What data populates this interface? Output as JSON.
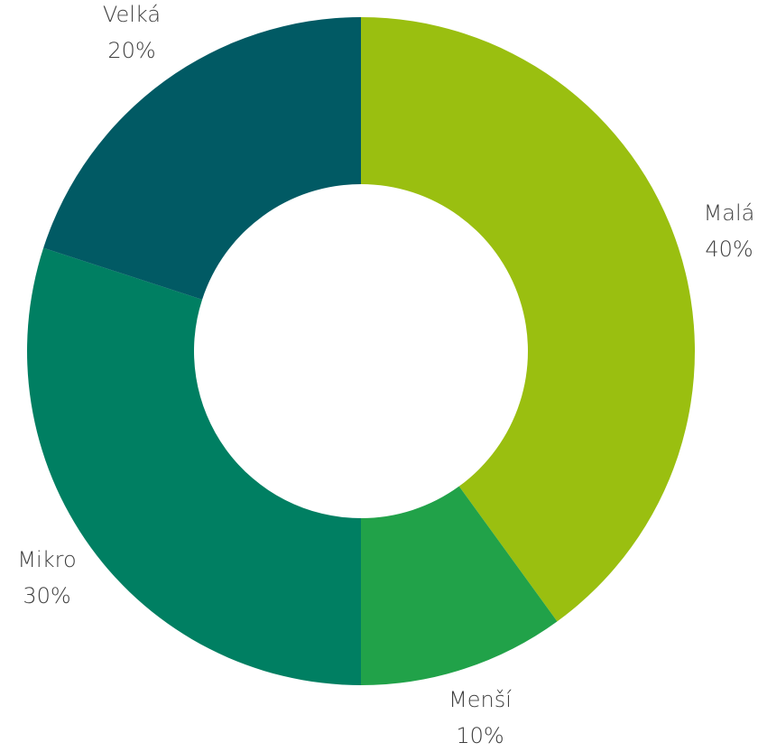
{
  "chart_data": {
    "type": "pie",
    "donut": true,
    "title": "",
    "series": [
      {
        "slices": [
          {
            "name": "Malá",
            "value": 40,
            "label": "40%",
            "color": "#9abf10"
          },
          {
            "name": "Menší",
            "value": 10,
            "label": "10%",
            "color": "#21a249"
          },
          {
            "name": "Mikro",
            "value": 30,
            "label": "30%",
            "color": "#007f62"
          },
          {
            "name": "Velká",
            "value": 20,
            "label": "20%",
            "color": "#015a64"
          }
        ]
      }
    ],
    "legend": "none"
  }
}
